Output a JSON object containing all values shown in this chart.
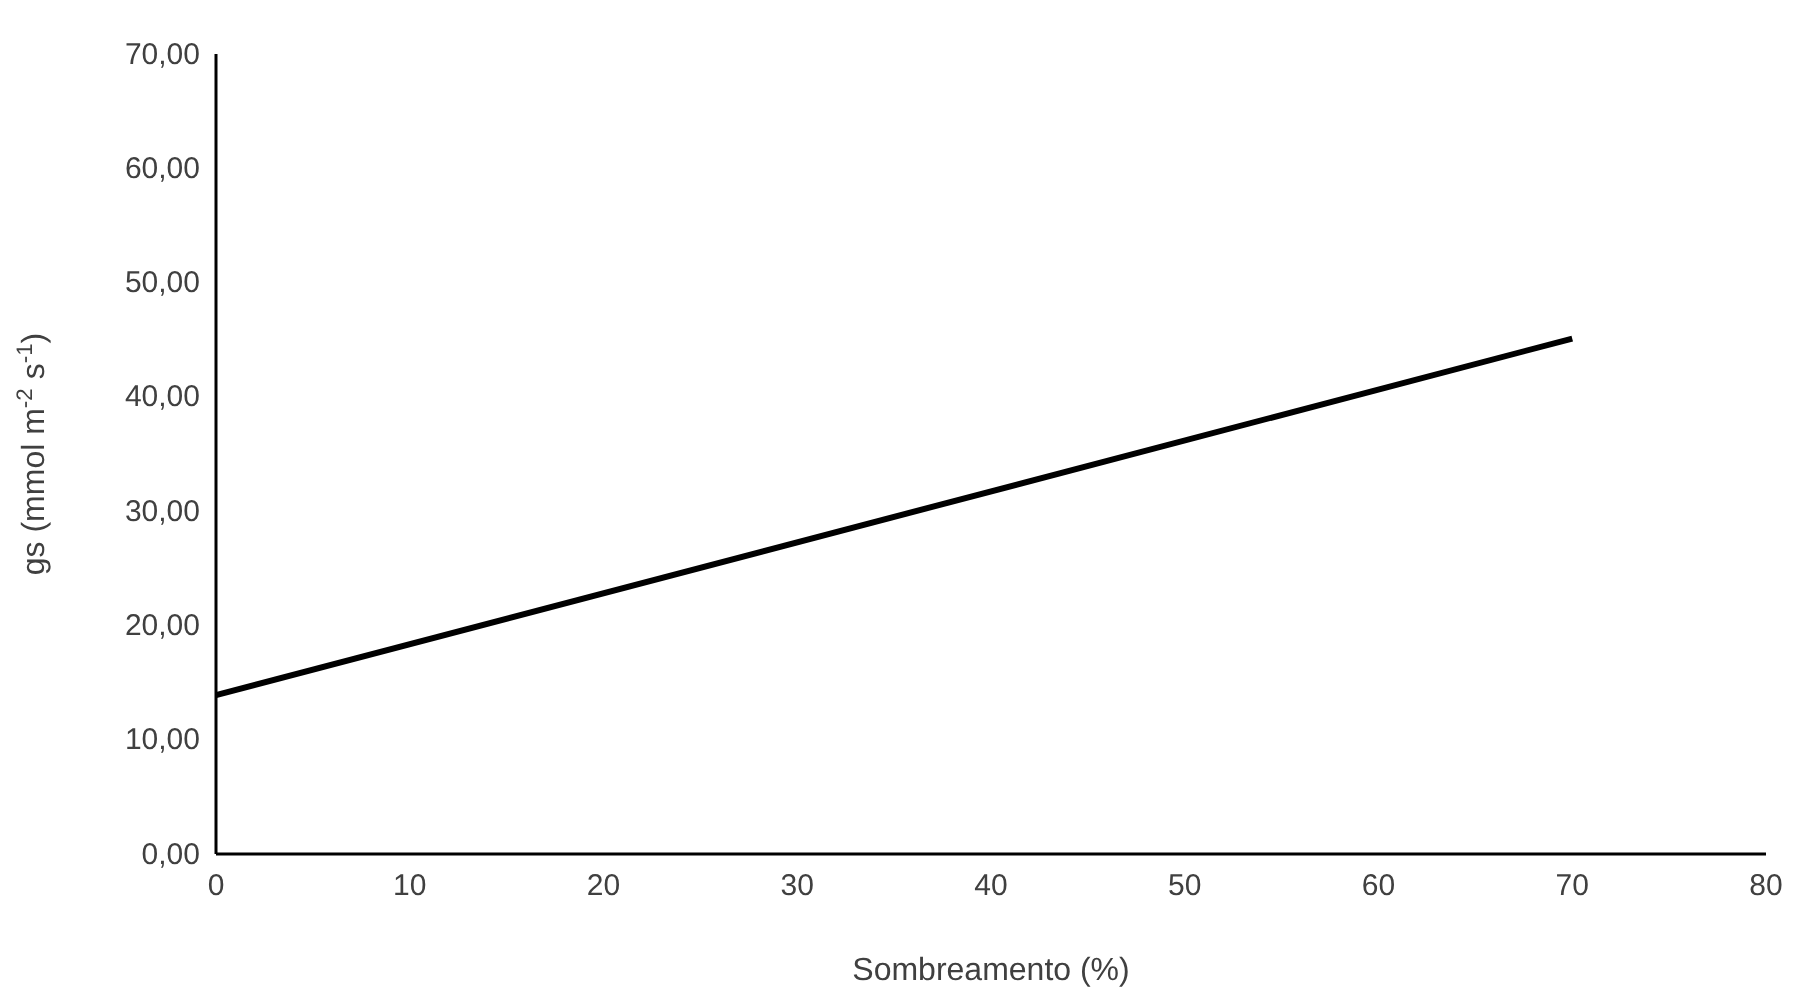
{
  "chart_data": {
    "type": "line",
    "xlabel": "Sombreamento (%)",
    "ylabel": "gs (mmol m$^{-2}$ s$^{-1}$)",
    "x": [
      0,
      70
    ],
    "series": [
      {
        "color": "#000000",
        "values": [
          13.9,
          45.1
        ]
      }
    ],
    "xlim": [
      0,
      80
    ],
    "xticks": [
      0,
      10,
      20,
      30,
      40,
      50,
      60,
      70,
      80
    ],
    "ylim": [
      0,
      70
    ],
    "yticks": [
      {
        "value": 0,
        "label": "0,00"
      },
      {
        "value": 10,
        "label": "10,00"
      },
      {
        "value": 20,
        "label": "20,00"
      },
      {
        "value": 30,
        "label": "30,00"
      },
      {
        "value": 40,
        "label": "40,00"
      },
      {
        "value": 50,
        "label": "50,00"
      },
      {
        "value": 60,
        "label": "60,00"
      },
      {
        "value": 70,
        "label": "70,00"
      }
    ],
    "grid": false,
    "marker": "none",
    "line_style": "solid"
  }
}
